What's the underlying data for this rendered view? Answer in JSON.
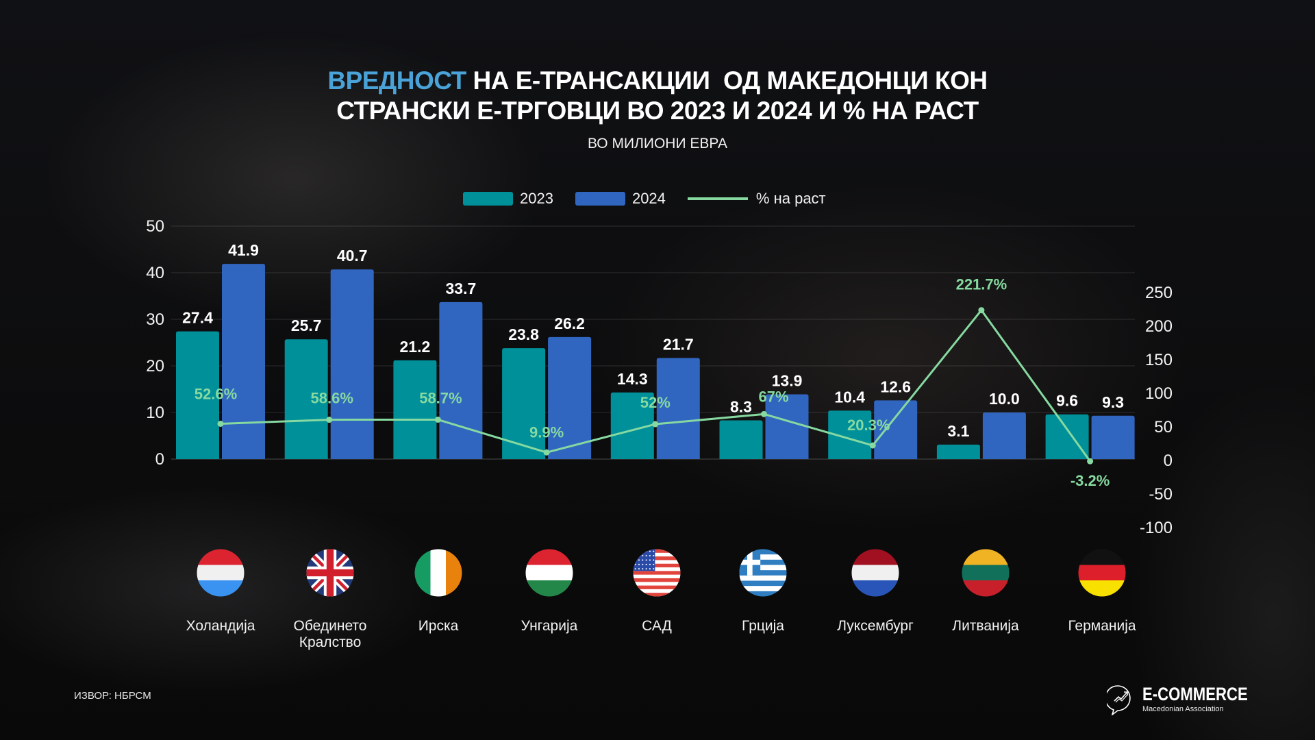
{
  "title": {
    "highlight": "ВРЕДНОСТ",
    "line1_rest": " НА Е-ТРАНСАКЦИИ  ОД МАКЕДОНЦИ КОН",
    "line2": "СТРАНСКИ Е-ТРГОВЦИ ВО 2023 И 2024 И % НА РАСТ"
  },
  "subtitle": "ВО МИЛИОНИ ЕВРА",
  "legend": {
    "items": [
      {
        "label": "2023",
        "type": "bar"
      },
      {
        "label": "2024",
        "type": "bar"
      },
      {
        "label": "% на раст",
        "type": "line"
      }
    ]
  },
  "source": "ИЗВОР: НБРСМ",
  "logo": {
    "name": "E-COMMERCE",
    "sub": "Macedonian Association",
    "icon": "growth-chart-speech-bubble-icon"
  },
  "colors": {
    "c2023": "#00909a",
    "c2024": "#3166c0",
    "growth": "#86d9a0",
    "title_highlight": "#4aa3d8"
  },
  "chart_data": {
    "type": "bar",
    "title": "ВРЕДНОСТ НА Е-ТРАНСАКЦИИ ОД МАКЕДОНЦИ КОН СТРАНСКИ Е-ТРГОВЦИ ВО 2023 И 2024 И % НА РАСТ",
    "subtitle": "ВО МИЛИОНИ ЕВРА",
    "categories": [
      "Холандија",
      "Обединето Кралство",
      "Ирска",
      "Унгарија",
      "САД",
      "Грција",
      "Луксембург",
      "Литванија",
      "Германија"
    ],
    "category_lines": [
      [
        "Холандија"
      ],
      [
        "Обединето",
        "Кралство"
      ],
      [
        "Ирска"
      ],
      [
        "Унгарија"
      ],
      [
        "САД"
      ],
      [
        "Грција"
      ],
      [
        "Луксембург"
      ],
      [
        "Литванија"
      ],
      [
        "Германија"
      ]
    ],
    "flags": [
      "luxembourg-style-flag",
      "uk-flag",
      "ireland-flag",
      "hungary-flag",
      "usa-flag",
      "greece-flag",
      "netherlands-style-flag",
      "lithuania-flag",
      "germany-flag"
    ],
    "series": [
      {
        "name": "2023",
        "type": "bar",
        "axis": "left",
        "values": [
          27.4,
          25.7,
          21.2,
          23.8,
          14.3,
          8.3,
          10.4,
          3.1,
          9.6
        ],
        "labels": [
          "27.4",
          "25.7",
          "21.2",
          "23.8",
          "14.3",
          "8.3",
          "10.4",
          "3.1",
          "9.6"
        ]
      },
      {
        "name": "2024",
        "type": "bar",
        "axis": "left",
        "values": [
          41.9,
          40.7,
          33.7,
          26.2,
          21.7,
          13.9,
          12.6,
          10.0,
          9.3
        ],
        "labels": [
          "41.9",
          "40.7",
          "33.7",
          "26.2",
          "21.7",
          "13.9",
          "12.6",
          "10.0",
          "9.3"
        ]
      },
      {
        "name": "% на раст",
        "type": "line",
        "axis": "right",
        "values": [
          52.6,
          58.6,
          58.7,
          9.9,
          52,
          67,
          20.3,
          221.7,
          -3.2
        ],
        "labels": [
          "52.6%",
          "58.6%",
          "58.7%",
          "9.9%",
          "52%",
          "67%",
          "20.3%",
          "221.7%",
          "-3.2%"
        ]
      }
    ],
    "y_left": {
      "min": 0,
      "max": 50,
      "ticks": [
        "0",
        "10",
        "20",
        "30",
        "40",
        "50"
      ]
    },
    "y_right": {
      "min": -100,
      "max": 250,
      "ticks": [
        "-100",
        "-50",
        "0",
        "50",
        "100",
        "150",
        "200",
        "250"
      ]
    },
    "grid": true,
    "legend_position": "top-center"
  }
}
